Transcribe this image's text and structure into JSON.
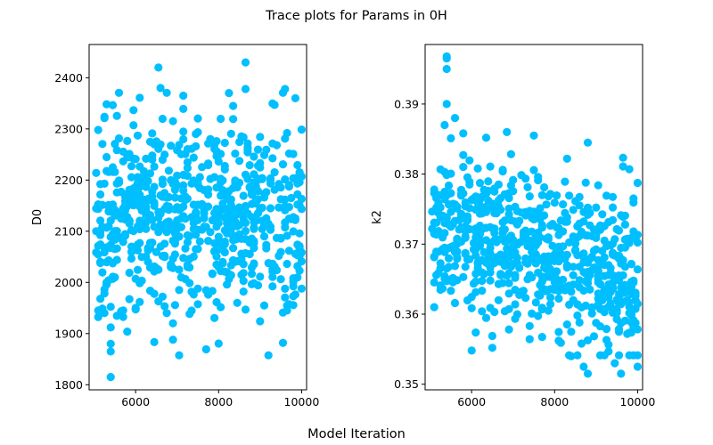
{
  "figure": {
    "suptitle": "Trace plots for Params in 0H",
    "supxlabel": "Model Iteration"
  },
  "chart_data": [
    {
      "type": "scatter",
      "ylabel": "D0",
      "xlabel": "",
      "marker_color": "#00bfff",
      "xlim": [
        4880,
        10120
      ],
      "ylim": [
        1790,
        2465
      ],
      "xticks": [
        6000,
        8000,
        10000
      ],
      "yticks": [
        1800,
        1900,
        2000,
        2100,
        2200,
        2300,
        2400
      ],
      "x_range": [
        5050,
        10000
      ],
      "n_points": 700,
      "center": 2130,
      "spread": 90,
      "outliers": [
        {
          "x": 5400,
          "y": 1815
        },
        {
          "x": 5400,
          "y": 1865
        },
        {
          "x": 5400,
          "y": 1880
        },
        {
          "x": 5400,
          "y": 1912
        },
        {
          "x": 6550,
          "y": 2420
        },
        {
          "x": 8650,
          "y": 2430
        },
        {
          "x": 5100,
          "y": 2298
        },
        {
          "x": 6900,
          "y": 1888
        },
        {
          "x": 6900,
          "y": 1920
        },
        {
          "x": 6750,
          "y": 1940
        },
        {
          "x": 9650,
          "y": 1945
        },
        {
          "x": 9650,
          "y": 1955
        },
        {
          "x": 5100,
          "y": 1945
        },
        {
          "x": 6000,
          "y": 1950
        },
        {
          "x": 8450,
          "y": 1960
        },
        {
          "x": 9100,
          "y": 1955
        },
        {
          "x": 6600,
          "y": 2380
        },
        {
          "x": 8250,
          "y": 2370
        },
        {
          "x": 9600,
          "y": 2378
        },
        {
          "x": 9850,
          "y": 2360
        },
        {
          "x": 7150,
          "y": 2365
        },
        {
          "x": 8650,
          "y": 2378
        }
      ]
    },
    {
      "type": "scatter",
      "ylabel": "k2",
      "xlabel": "",
      "marker_color": "#00bfff",
      "xlim": [
        4880,
        10120
      ],
      "ylim": [
        0.3492,
        0.3985
      ],
      "xticks": [
        6000,
        8000,
        10000
      ],
      "yticks": [
        0.35,
        0.36,
        0.37,
        0.38,
        0.39
      ],
      "x_range": [
        5050,
        10000
      ],
      "n_points": 700,
      "center_start": 0.373,
      "center_end": 0.365,
      "spread": 0.0055,
      "outliers": [
        {
          "x": 5400,
          "y": 0.3968
        },
        {
          "x": 5400,
          "y": 0.3965
        },
        {
          "x": 5400,
          "y": 0.395
        },
        {
          "x": 5400,
          "y": 0.39
        },
        {
          "x": 5600,
          "y": 0.388
        },
        {
          "x": 5350,
          "y": 0.387
        },
        {
          "x": 5100,
          "y": 0.361
        },
        {
          "x": 5250,
          "y": 0.3635
        },
        {
          "x": 6000,
          "y": 0.3548
        },
        {
          "x": 6500,
          "y": 0.3552
        },
        {
          "x": 8700,
          "y": 0.3525
        },
        {
          "x": 8800,
          "y": 0.3515
        },
        {
          "x": 9600,
          "y": 0.3515
        },
        {
          "x": 10000,
          "y": 0.3525
        },
        {
          "x": 8800,
          "y": 0.3845
        },
        {
          "x": 6850,
          "y": 0.386
        },
        {
          "x": 7500,
          "y": 0.3855
        },
        {
          "x": 9800,
          "y": 0.3807
        },
        {
          "x": 8300,
          "y": 0.3822
        },
        {
          "x": 9450,
          "y": 0.353
        },
        {
          "x": 8400,
          "y": 0.354
        }
      ]
    }
  ]
}
